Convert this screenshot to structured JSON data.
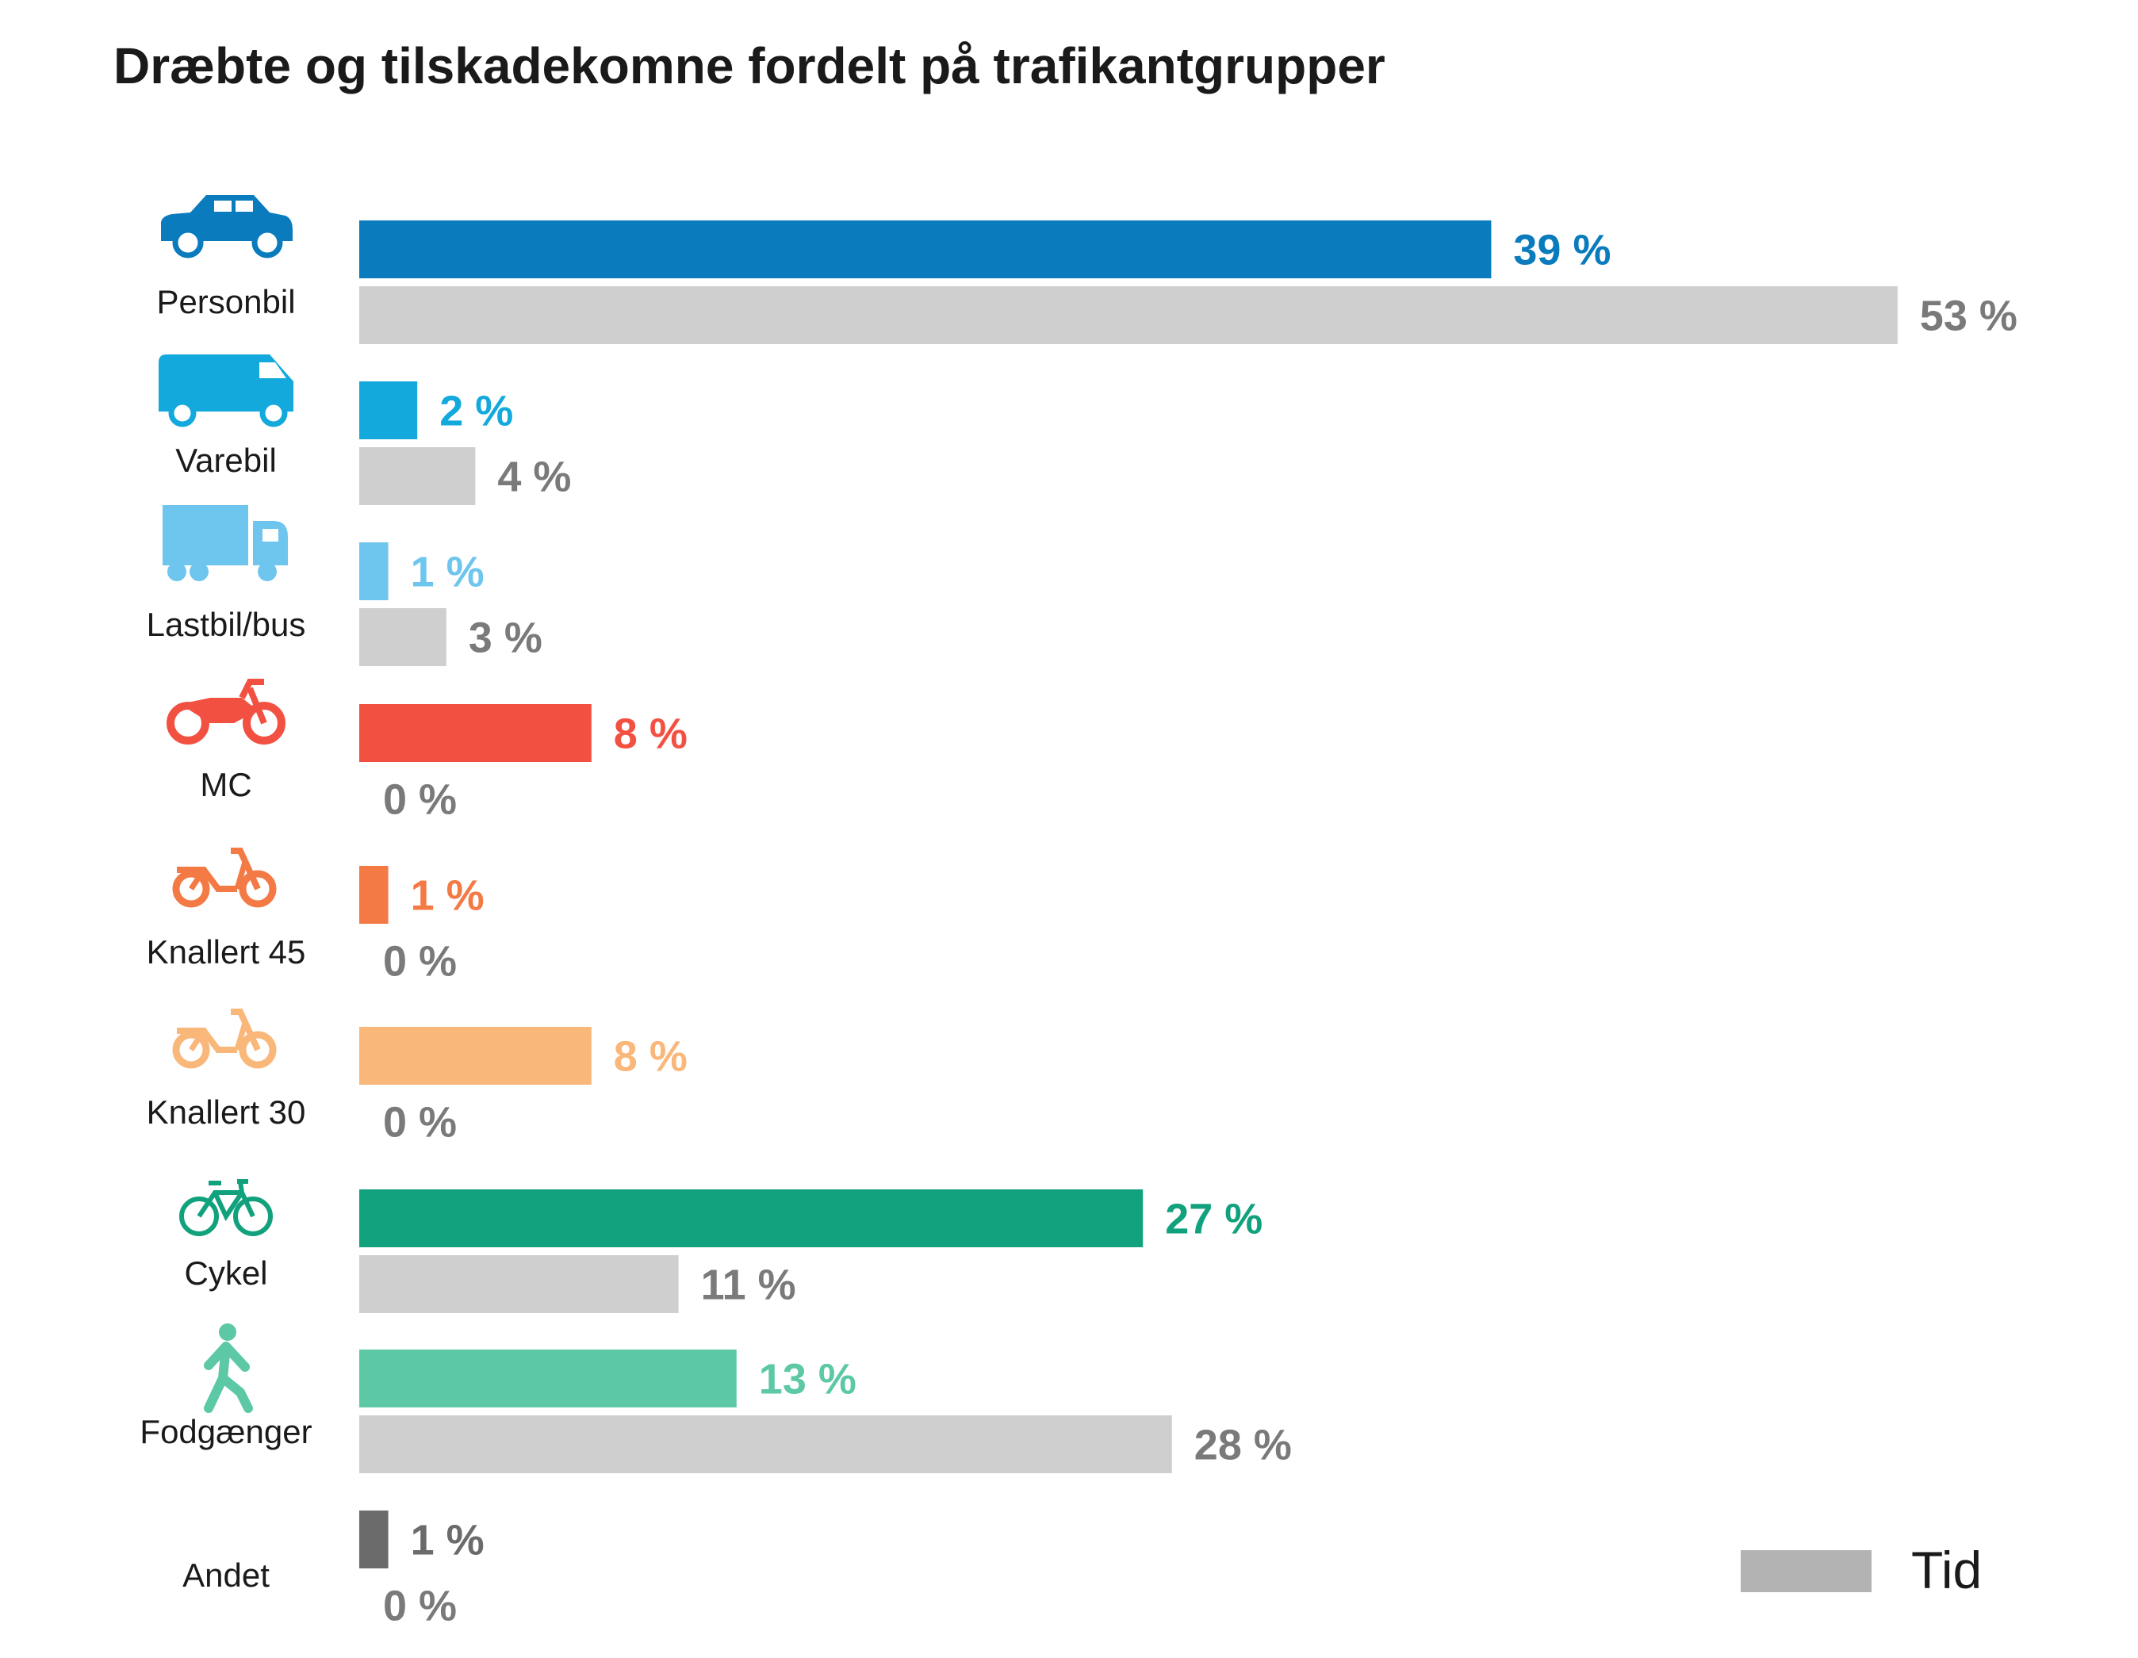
{
  "chart_data": {
    "type": "bar",
    "orientation": "horizontal",
    "title": "Dræbte og tilskadekomne fordelt på trafikantgrupper",
    "categories": [
      "Personbil",
      "Varebil",
      "Lastbil/bus",
      "MC",
      "Knallert 45",
      "Knallert 30",
      "Cykel",
      "Fodgænger",
      "Andet"
    ],
    "icons": [
      "car-icon",
      "van-icon",
      "truck-icon",
      "motorcycle-icon",
      "moped-icon",
      "moped-icon",
      "bicycle-icon",
      "pedestrian-icon",
      ""
    ],
    "series": [
      {
        "name": "",
        "values": [
          39,
          2,
          1,
          8,
          1,
          8,
          27,
          13,
          1
        ],
        "labels": [
          "39 %",
          "2 %",
          "1 %",
          "8 %",
          "1 %",
          "8 %",
          "27 %",
          "13 %",
          "1 %"
        ],
        "colors": [
          "#0a7bbd",
          "#13a9dd",
          "#6ec6ee",
          "#f25142",
          "#f47a45",
          "#f9b77a",
          "#11a27d",
          "#5cc8a6",
          "#6b6b6b"
        ]
      },
      {
        "name": "Tid",
        "values": [
          53,
          4,
          3,
          0,
          0,
          0,
          11,
          28,
          0
        ],
        "labels": [
          "53 %",
          "4 %",
          "3 %",
          "0 %",
          "0 %",
          "0 %",
          "11 %",
          "28 %",
          "0 %"
        ],
        "color": "#cfcfcf",
        "label_color": "#7a7a7a"
      }
    ],
    "legend": {
      "label": "Tid",
      "color": "#b3b3b3",
      "position": "bottom-right"
    },
    "xlim": [
      0,
      53
    ],
    "grid": false
  }
}
